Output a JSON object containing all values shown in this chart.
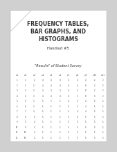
{
  "title_line1": "FREQUENCY TABLES,",
  "title_line2": "BAR GRAPHS, AND",
  "title_line3": "HISTOGRAMS",
  "subtitle": "Handout #5",
  "table_title": "\"Results\" of Student Survey",
  "background_color": "#d0d0d0",
  "page_color": "#e8e8e8",
  "title_fontsize": 5.5,
  "subtitle_fontsize": 3.8,
  "table_title_fontsize": 3.5,
  "data_fontsize": 1.9,
  "col_headers": [
    "w1",
    "w2",
    "w3",
    "w4",
    "w5",
    "w6",
    "w7",
    "w8",
    "w9",
    "w10",
    "w11"
  ],
  "num_rows": 12,
  "num_cols": 11,
  "cell_data": [
    [
      1,
      1,
      2,
      4,
      4,
      4,
      4,
      4,
      4,
      2,
      2
    ],
    [
      2,
      2,
      3,
      4,
      4,
      4,
      4,
      4,
      0,
      2,
      2
    ],
    [
      3,
      3,
      3,
      4,
      4,
      4,
      4,
      3,
      0,
      2,
      2
    ],
    [
      4,
      4,
      3,
      4,
      4,
      4,
      4,
      3,
      0,
      5,
      2
    ],
    [
      5,
      5,
      3,
      5,
      5,
      5,
      4,
      3,
      4,
      5,
      5
    ],
    [
      6,
      6,
      3,
      5,
      5,
      5,
      5,
      3,
      4,
      5,
      5
    ],
    [
      7,
      7,
      3,
      5,
      5,
      5,
      5,
      4,
      4,
      5,
      5
    ],
    [
      8,
      8,
      4,
      5,
      5,
      5,
      5,
      4,
      5,
      5,
      5
    ],
    [
      9,
      9,
      4,
      5,
      5,
      5,
      5,
      5,
      5,
      5,
      5
    ],
    [
      10,
      9,
      4,
      5,
      5,
      5,
      5,
      5,
      5,
      5,
      5
    ],
    [
      11,
      10,
      4,
      5,
      5,
      5,
      5,
      5,
      5,
      5,
      5
    ],
    [
      12,
      10,
      4,
      5,
      5,
      5,
      5,
      5,
      5,
      5,
      5
    ]
  ]
}
